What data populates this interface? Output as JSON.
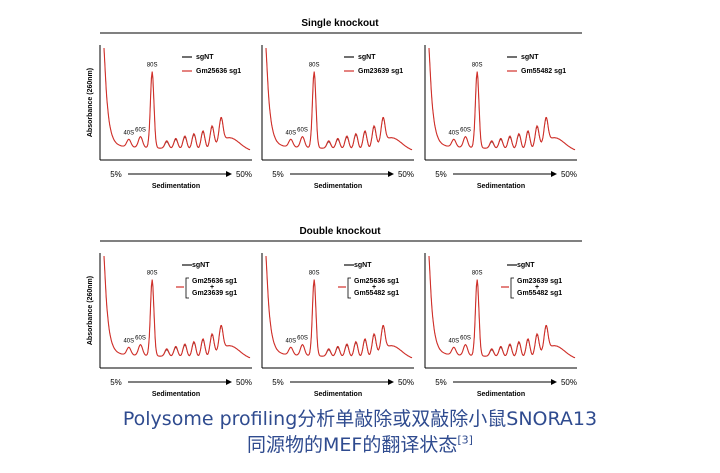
{
  "sections": [
    {
      "title": "Single knockout",
      "y_label": "Absorbance (260nm)",
      "panels": [
        {
          "peaks": [
            "40S",
            "60S",
            "80S"
          ],
          "x_start": "5%",
          "x_end": "50%",
          "x_label": "Sedimentation",
          "legend": [
            "sgNT",
            "Gm25636 sg1"
          ]
        },
        {
          "peaks": [
            "40S",
            "60S",
            "80S"
          ],
          "x_start": "5%",
          "x_end": "50%",
          "x_label": "Sedimentation",
          "legend": [
            "sgNT",
            "Gm23639 sg1"
          ]
        },
        {
          "peaks": [
            "40S",
            "60S",
            "80S"
          ],
          "x_start": "5%",
          "x_end": "50%",
          "x_label": "Sedimentation",
          "legend": [
            "sgNT",
            "Gm55482 sg1"
          ]
        }
      ]
    },
    {
      "title": "Double knockout",
      "y_label": "Absorbance (260nm)",
      "panels": [
        {
          "peaks": [
            "40S",
            "60S",
            "80S"
          ],
          "x_start": "5%",
          "x_end": "50%",
          "x_label": "Sedimentation",
          "legend": [
            "sgNT",
            "Gm25636 sg1",
            "+",
            "Gm23639 sg1"
          ]
        },
        {
          "peaks": [
            "40S",
            "60S",
            "80S"
          ],
          "x_start": "5%",
          "x_end": "50%",
          "x_label": "Sedimentation",
          "legend": [
            "sgNT",
            "Gm25636 sg1",
            "+",
            "Gm55482 sg1"
          ]
        },
        {
          "peaks": [
            "40S",
            "60S",
            "80S"
          ],
          "x_start": "5%",
          "x_end": "50%",
          "x_label": "Sedimentation",
          "legend": [
            "sgNT",
            "Gm23639 sg1",
            "+",
            "Gm55482 sg1"
          ]
        }
      ]
    }
  ],
  "caption": {
    "line1": "Polysome profiling分析单敲除或双敲除小鼠SNORA13",
    "line2": "同源物的MEF的翻译状态",
    "ref": "[3]"
  }
}
